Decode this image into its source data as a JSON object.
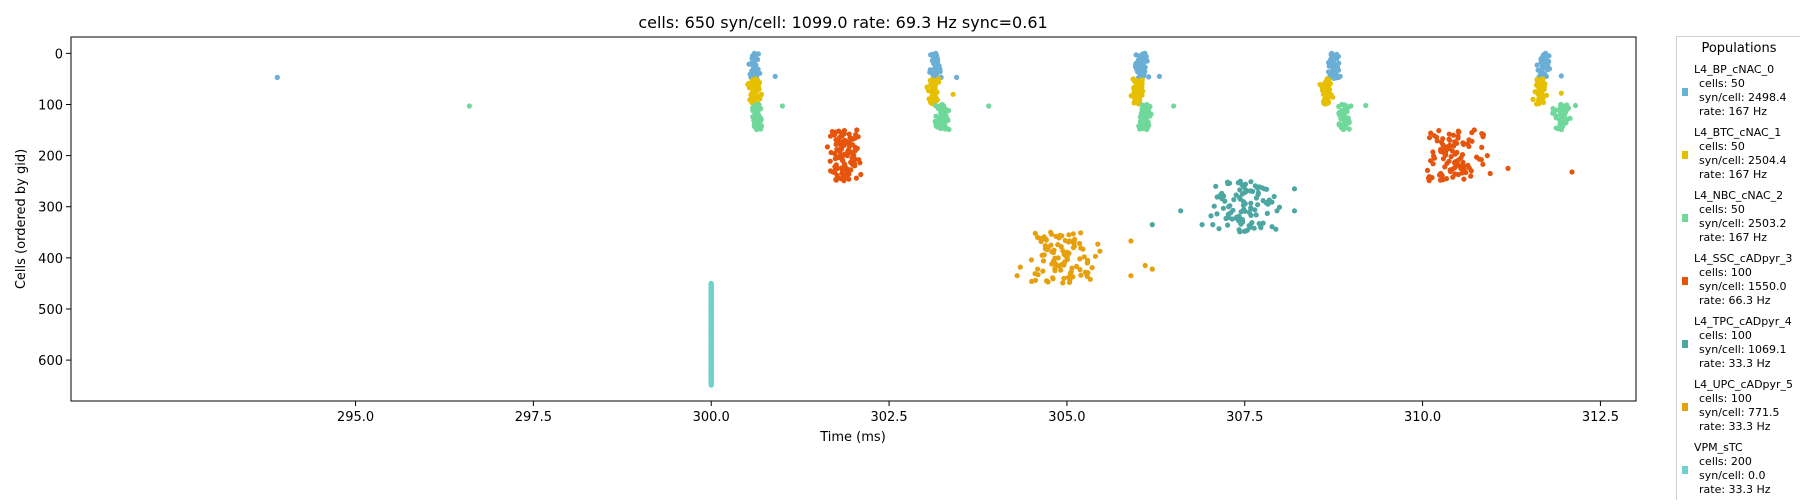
{
  "chart_data": {
    "type": "scatter",
    "title": "cells: 650   syn/cell: 1099.0   rate: 69.3 Hz    sync=0.61",
    "xlabel": "Time (ms)",
    "ylabel": "Cells (ordered by gid)",
    "xlim": [
      291.0,
      313.0
    ],
    "ylim": [
      680,
      -32
    ],
    "xticks": [
      295.0,
      297.5,
      300.0,
      302.5,
      305.0,
      307.5,
      310.0,
      312.5
    ],
    "xtick_labels": [
      "295.0",
      "297.5",
      "300.0",
      "302.5",
      "305.0",
      "307.5",
      "310.0",
      "312.5"
    ],
    "yticks": [
      0,
      100,
      200,
      300,
      400,
      500,
      600
    ],
    "ytick_labels": [
      "0",
      "100",
      "200",
      "300",
      "400",
      "500",
      "600"
    ],
    "grid": false,
    "legend": {
      "title": "Populations",
      "placement": "outside-right",
      "entries": [
        {
          "name": "L4_BP_cNAC_0",
          "color": "#6baed6",
          "cells": "cells: 50",
          "syn": "syn/cell: 2498.4",
          "rate": "rate: 167 Hz"
        },
        {
          "name": "L4_BTC_cNAC_1",
          "color": "#e6c000",
          "cells": "cells: 50",
          "syn": "syn/cell: 2504.4",
          "rate": "rate: 167 Hz"
        },
        {
          "name": "L4_NBC_cNAC_2",
          "color": "#6fd89a",
          "cells": "cells: 50",
          "syn": "syn/cell: 2503.2",
          "rate": "rate: 167 Hz"
        },
        {
          "name": "L4_SSC_cADpyr_3",
          "color": "#e6550d",
          "cells": "cells: 100",
          "syn": "syn/cell: 1550.0",
          "rate": "rate: 66.3 Hz"
        },
        {
          "name": "L4_TPC_cADpyr_4",
          "color": "#4ca6a2",
          "cells": "cells: 100",
          "syn": "syn/cell: 1069.1",
          "rate": "rate: 33.3 Hz"
        },
        {
          "name": "L4_UPC_cADpyr_5",
          "color": "#e6a00d",
          "cells": "cells: 100",
          "syn": "syn/cell: 771.5",
          "rate": "rate: 33.3 Hz"
        },
        {
          "name": "VPM_sTC",
          "color": "#6fd2cc",
          "cells": "cells: 200",
          "syn": "syn/cell: 0.0",
          "rate": "rate: 33.3 Hz"
        }
      ]
    },
    "series": [
      {
        "name": "L4_BP_cNAC_0",
        "color": "#6baed6",
        "gid_range": [
          0,
          49
        ],
        "bursts": [
          {
            "t": 300.6,
            "spread": 0.07
          },
          {
            "t": 303.15,
            "spread": 0.07
          },
          {
            "t": 306.05,
            "spread": 0.07
          },
          {
            "t": 308.75,
            "spread": 0.07
          },
          {
            "t": 311.7,
            "spread": 0.07
          }
        ],
        "isolated": [
          {
            "t": 293.9,
            "gid": 47
          },
          {
            "t": 300.9,
            "gid": 45
          },
          {
            "t": 303.45,
            "gid": 47
          },
          {
            "t": 306.3,
            "gid": 45
          },
          {
            "t": 311.95,
            "gid": 44
          }
        ]
      },
      {
        "name": "L4_BTC_cNAC_1",
        "color": "#e6c000",
        "gid_range": [
          50,
          99
        ],
        "bursts": [
          {
            "t": 300.62,
            "spread": 0.07
          },
          {
            "t": 303.12,
            "spread": 0.07
          },
          {
            "t": 306.0,
            "spread": 0.07
          },
          {
            "t": 308.65,
            "spread": 0.07
          },
          {
            "t": 311.65,
            "spread": 0.07
          }
        ],
        "isolated": [
          {
            "t": 303.4,
            "gid": 80
          },
          {
            "t": 311.95,
            "gid": 78
          }
        ]
      },
      {
        "name": "L4_NBC_cNAC_2",
        "color": "#6fd89a",
        "gid_range": [
          100,
          149
        ],
        "bursts": [
          {
            "t": 300.65,
            "spread": 0.06
          },
          {
            "t": 303.25,
            "spread": 0.09
          },
          {
            "t": 306.1,
            "spread": 0.07
          },
          {
            "t": 308.9,
            "spread": 0.08
          },
          {
            "t": 311.95,
            "spread": 0.09
          }
        ],
        "isolated": [
          {
            "t": 296.6,
            "gid": 103
          },
          {
            "t": 301.0,
            "gid": 103
          },
          {
            "t": 303.9,
            "gid": 103
          },
          {
            "t": 306.5,
            "gid": 103
          },
          {
            "t": 309.2,
            "gid": 102
          },
          {
            "t": 312.15,
            "gid": 102
          }
        ]
      },
      {
        "name": "L4_SSC_cADpyr_3",
        "color": "#e6550d",
        "gid_range": [
          150,
          249
        ],
        "bursts": [
          {
            "t": 301.85,
            "spread": 0.22
          },
          {
            "t": 310.4,
            "spread": 0.38
          }
        ],
        "isolated": [
          {
            "t": 311.2,
            "gid": 225
          },
          {
            "t": 312.1,
            "gid": 232
          },
          {
            "t": 310.95,
            "gid": 235
          }
        ]
      },
      {
        "name": "L4_TPC_cADpyr_4",
        "color": "#4ca6a2",
        "gid_range": [
          250,
          349
        ],
        "bursts": [
          {
            "t": 307.5,
            "spread": 0.45
          }
        ],
        "isolated": [
          {
            "t": 306.2,
            "gid": 335
          },
          {
            "t": 306.6,
            "gid": 308
          },
          {
            "t": 306.9,
            "gid": 335
          },
          {
            "t": 308.2,
            "gid": 265
          },
          {
            "t": 308.2,
            "gid": 308
          }
        ]
      },
      {
        "name": "L4_UPC_cADpyr_5",
        "color": "#e6a00d",
        "gid_range": [
          350,
          449
        ],
        "bursts": [
          {
            "t": 304.95,
            "spread": 0.45
          }
        ],
        "isolated": [
          {
            "t": 305.9,
            "gid": 367
          },
          {
            "t": 305.9,
            "gid": 435
          },
          {
            "t": 306.1,
            "gid": 415
          },
          {
            "t": 306.2,
            "gid": 422
          },
          {
            "t": 304.3,
            "gid": 435
          }
        ]
      },
      {
        "name": "VPM_sTC",
        "color": "#6fd2cc",
        "gid_range": [
          450,
          649
        ],
        "bursts": [
          {
            "t": 300.0,
            "spread": 0.0
          }
        ],
        "isolated": []
      }
    ]
  }
}
